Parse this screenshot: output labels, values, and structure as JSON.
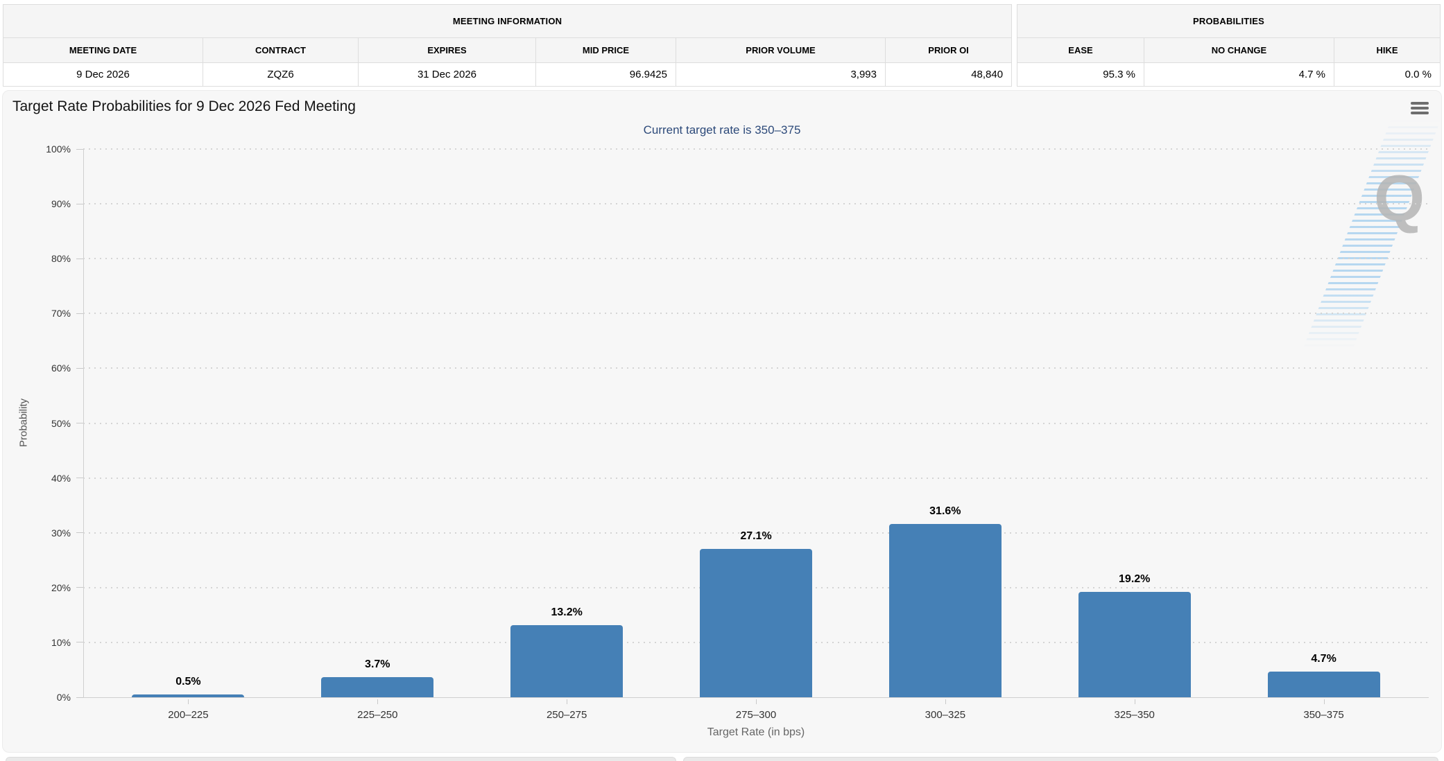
{
  "meeting_information": {
    "title": "MEETING INFORMATION",
    "columns": [
      "MEETING DATE",
      "CONTRACT",
      "EXPIRES",
      "MID PRICE",
      "PRIOR VOLUME",
      "PRIOR OI"
    ],
    "values": [
      "9 Dec 2026",
      "ZQZ6",
      "31 Dec 2026",
      "96.9425",
      "3,993",
      "48,840"
    ]
  },
  "probabilities_panel": {
    "title": "PROBABILITIES",
    "columns": [
      "EASE",
      "NO CHANGE",
      "HIKE"
    ],
    "values": [
      "95.3 %",
      "4.7 %",
      "0.0 %"
    ]
  },
  "chart": {
    "title": "Target Rate Probabilities for 9 Dec 2026 Fed Meeting",
    "subtitle": "Current target rate is 350–375",
    "menu_icon": "hamburger-icon",
    "watermark_letter": "Q"
  },
  "chart_data": {
    "type": "bar",
    "categories": [
      "200–225",
      "225–250",
      "250–275",
      "275–300",
      "300–325",
      "325–350",
      "350–375"
    ],
    "values": [
      0.5,
      3.7,
      13.2,
      27.1,
      31.6,
      19.2,
      4.7
    ],
    "data_labels": [
      "0.5%",
      "3.7%",
      "13.2%",
      "27.1%",
      "31.6%",
      "19.2%",
      "4.7%"
    ],
    "title": "Target Rate Probabilities for 9 Dec 2026 Fed Meeting",
    "subtitle": "Current target rate is 350–375",
    "xlabel": "Target Rate (in bps)",
    "ylabel": "Probability",
    "ylim": [
      0,
      100
    ],
    "ytick_step": 10,
    "ytick_suffix": "%",
    "grid": true,
    "legend": "none"
  },
  "colors": {
    "bar_fill": "#4580B6",
    "subtitle_text": "#2D4A7A",
    "panel_header_bg": "#F5F5F5",
    "chart_bg": "#F7F7F7"
  }
}
